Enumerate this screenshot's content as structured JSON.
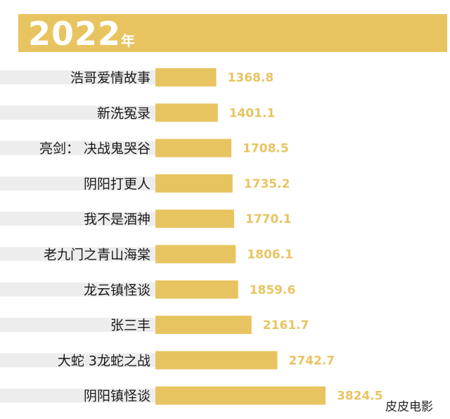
{
  "header": {
    "year": "2022",
    "unit": "年",
    "accent_color": "#e8c461",
    "text_color": "#ffffff"
  },
  "watermark": "皮皮电影",
  "chart_data": {
    "type": "bar",
    "orientation": "horizontal",
    "title": "2022年",
    "xlabel": "",
    "ylabel": "",
    "grid": false,
    "legend": "none",
    "bar_color": "#e8c461",
    "label_background_color": "#ededed",
    "categories": [
      "浩哥爱情故事",
      "新洗冤录",
      "亮剑： 决战鬼哭谷",
      "阴阳打更人",
      "我不是酒神",
      "老九门之青山海棠",
      "龙云镇怪谈",
      "张三丰",
      "大蛇 3龙蛇之战",
      "阴阳镇怪谈"
    ],
    "values": [
      1368.8,
      1401.1,
      1708.5,
      1735.2,
      1770.1,
      1806.1,
      1859.6,
      2161.7,
      2742.7,
      3824.5
    ],
    "value_labels": [
      "1368.8",
      "1401.1",
      "1708.5",
      "1735.2",
      "1770.1",
      "1806.1",
      "1859.6",
      "2161.7",
      "2742.7",
      "3824.5"
    ]
  }
}
